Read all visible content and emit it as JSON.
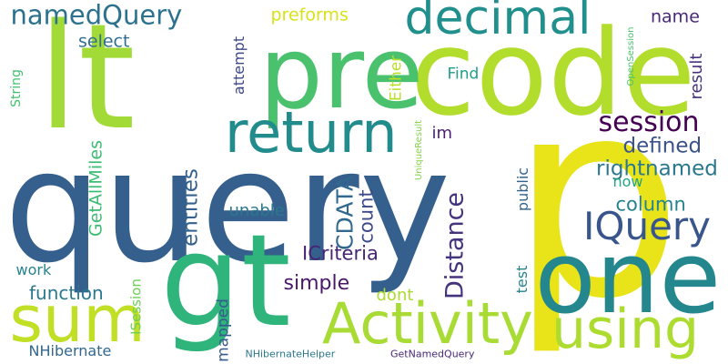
{
  "words": [
    {
      "text": "p",
      "color": "#e8e419"
    },
    {
      "text": "query",
      "color": "#355f8d"
    },
    {
      "text": "code",
      "color": "#b2dd2d"
    },
    {
      "text": "pre",
      "color": "#4ac16d"
    },
    {
      "text": "lt",
      "color": "#a2da37"
    },
    {
      "text": "gt",
      "color": "#2fb47c"
    },
    {
      "text": "one",
      "color": "#24878e"
    },
    {
      "text": "Activity",
      "color": "#a8db34"
    },
    {
      "text": "return",
      "color": "#228c8d"
    },
    {
      "text": "using",
      "color": "#addc30"
    },
    {
      "text": "sum",
      "color": "#c0df25"
    },
    {
      "text": "decimal",
      "color": "#21908d"
    },
    {
      "text": "IQuery",
      "color": "#39568c"
    },
    {
      "text": "session",
      "color": "#440154"
    },
    {
      "text": "namedQuery",
      "color": "#2c728e"
    },
    {
      "text": "rightnamed",
      "color": "#2a788e"
    },
    {
      "text": "defined",
      "color": "#3b528b"
    },
    {
      "text": "column",
      "color": "#26828e"
    },
    {
      "text": "Distance",
      "color": "#46337e"
    },
    {
      "text": "CDATA",
      "color": "#31688e"
    },
    {
      "text": "entities",
      "color": "#34618d"
    },
    {
      "text": "count",
      "color": "#3e4989"
    },
    {
      "text": "function",
      "color": "#2a788e"
    },
    {
      "text": "simple",
      "color": "#48186a"
    },
    {
      "text": "ICriteria",
      "color": "#482475"
    },
    {
      "text": "GetAllMiles",
      "color": "#3dbc74"
    },
    {
      "text": "preforms",
      "color": "#d8e219"
    },
    {
      "text": "select",
      "color": "#2e6e8e"
    },
    {
      "text": "name",
      "color": "#482878"
    },
    {
      "text": "result",
      "color": "#46327e"
    },
    {
      "text": "Find",
      "color": "#1f9e89"
    },
    {
      "text": "attempt",
      "color": "#3e4989"
    },
    {
      "text": "Either",
      "color": "#bade28"
    },
    {
      "text": "im",
      "color": "#481f70"
    },
    {
      "text": "now",
      "color": "#21a685"
    },
    {
      "text": "public",
      "color": "#33638d"
    },
    {
      "text": "unable",
      "color": "#2a788e"
    },
    {
      "text": "test",
      "color": "#25838e"
    },
    {
      "text": "dont",
      "color": "#addc30"
    },
    {
      "text": "mapped",
      "color": "#365c8d"
    },
    {
      "text": "work",
      "color": "#26828e"
    },
    {
      "text": "ISession",
      "color": "#6ece58"
    },
    {
      "text": "NHibernate",
      "color": "#31688e"
    },
    {
      "text": "String",
      "color": "#44bf70"
    },
    {
      "text": "OpenSession",
      "color": "#4ac16d"
    },
    {
      "text": "UniqueResult",
      "color": "#84d44b"
    },
    {
      "text": "NHibernateHelper",
      "color": "#2a788e"
    },
    {
      "text": "GetNamedQuery",
      "color": "#482878"
    }
  ]
}
